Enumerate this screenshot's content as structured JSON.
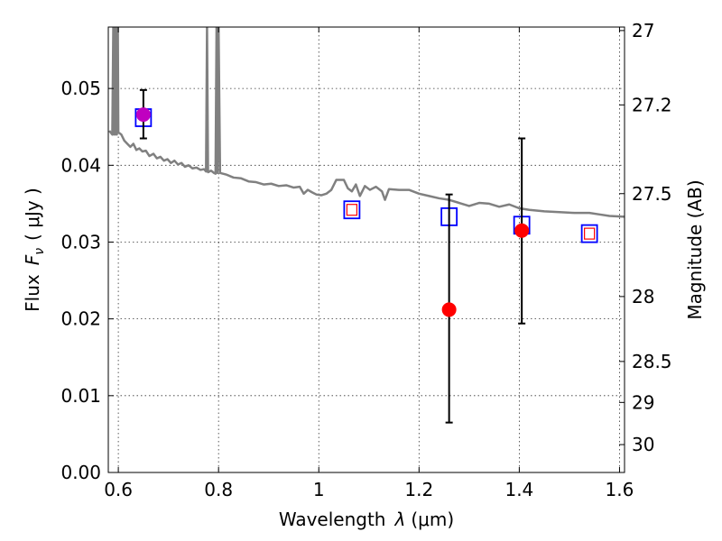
{
  "chart_data": {
    "type": "scatter",
    "x_axis": {
      "label_prefix": "Wavelength",
      "label_symbol": "λ",
      "label_unit": "(μm)",
      "range": [
        0.58,
        1.61
      ],
      "ticks": [
        0.6,
        0.8,
        1.0,
        1.2,
        1.4,
        1.6
      ],
      "tick_labels": [
        "0.6",
        "0.8",
        "1",
        "1.2",
        "1.4",
        "1.6"
      ]
    },
    "y_axis": {
      "label_prefix": "Flux",
      "label_symbol": "F",
      "label_subscript": "ν",
      "label_unit": "( μJy )",
      "range": [
        0.0,
        0.058
      ],
      "ticks": [
        0.0,
        0.01,
        0.02,
        0.03,
        0.04,
        0.05
      ],
      "tick_labels": [
        "0.00",
        "0.01",
        "0.02",
        "0.03",
        "0.04",
        "0.05"
      ]
    },
    "y2_axis": {
      "label": "Magnitude (AB)",
      "ticks": [
        27,
        27.2,
        27.5,
        28,
        28.5,
        29,
        30
      ],
      "tick_labels": [
        "27",
        "27.2",
        "27.5",
        "28",
        "28.5",
        "29",
        "30"
      ]
    },
    "grid": true,
    "series": [
      {
        "name": "model_sed",
        "kind": "line",
        "color": "#808080",
        "points": [
          [
            0.582,
            0.0445
          ],
          [
            0.588,
            0.044
          ],
          [
            0.59,
            0.058
          ],
          [
            0.591,
            0.044
          ],
          [
            0.593,
            0.058
          ],
          [
            0.594,
            0.044
          ],
          [
            0.596,
            0.058
          ],
          [
            0.597,
            0.044
          ],
          [
            0.599,
            0.058
          ],
          [
            0.6,
            0.0443
          ],
          [
            0.606,
            0.044
          ],
          [
            0.612,
            0.0432
          ],
          [
            0.618,
            0.0428
          ],
          [
            0.624,
            0.0424
          ],
          [
            0.63,
            0.0428
          ],
          [
            0.636,
            0.042
          ],
          [
            0.642,
            0.0422
          ],
          [
            0.648,
            0.0418
          ],
          [
            0.655,
            0.0419
          ],
          [
            0.662,
            0.0412
          ],
          [
            0.67,
            0.0415
          ],
          [
            0.677,
            0.0409
          ],
          [
            0.684,
            0.0411
          ],
          [
            0.691,
            0.0406
          ],
          [
            0.698,
            0.0408
          ],
          [
            0.705,
            0.0403
          ],
          [
            0.712,
            0.0406
          ],
          [
            0.719,
            0.0401
          ],
          [
            0.726,
            0.0403
          ],
          [
            0.733,
            0.0398
          ],
          [
            0.74,
            0.04
          ],
          [
            0.748,
            0.0396
          ],
          [
            0.756,
            0.0397
          ],
          [
            0.764,
            0.0394
          ],
          [
            0.771,
            0.0395
          ],
          [
            0.775,
            0.0392
          ],
          [
            0.777,
            0.058
          ],
          [
            0.779,
            0.0391
          ],
          [
            0.785,
            0.0393
          ],
          [
            0.791,
            0.039
          ],
          [
            0.794,
            0.0389
          ],
          [
            0.796,
            0.058
          ],
          [
            0.798,
            0.039
          ],
          [
            0.8,
            0.058
          ],
          [
            0.803,
            0.039
          ],
          [
            0.815,
            0.0388
          ],
          [
            0.83,
            0.0384
          ],
          [
            0.845,
            0.0383
          ],
          [
            0.86,
            0.0379
          ],
          [
            0.875,
            0.0378
          ],
          [
            0.89,
            0.0375
          ],
          [
            0.905,
            0.0376
          ],
          [
            0.92,
            0.0373
          ],
          [
            0.935,
            0.0374
          ],
          [
            0.95,
            0.0371
          ],
          [
            0.962,
            0.0372
          ],
          [
            0.97,
            0.0363
          ],
          [
            0.978,
            0.0368
          ],
          [
            0.986,
            0.0365
          ],
          [
            0.995,
            0.0362
          ],
          [
            1.005,
            0.0361
          ],
          [
            1.015,
            0.0363
          ],
          [
            1.025,
            0.0368
          ],
          [
            1.035,
            0.0381
          ],
          [
            1.05,
            0.0381
          ],
          [
            1.058,
            0.037
          ],
          [
            1.066,
            0.0366
          ],
          [
            1.074,
            0.0375
          ],
          [
            1.082,
            0.036
          ],
          [
            1.092,
            0.0373
          ],
          [
            1.102,
            0.0368
          ],
          [
            1.114,
            0.0372
          ],
          [
            1.126,
            0.0366
          ],
          [
            1.132,
            0.0355
          ],
          [
            1.14,
            0.0369
          ],
          [
            1.16,
            0.0368
          ],
          [
            1.18,
            0.0368
          ],
          [
            1.2,
            0.0363
          ],
          [
            1.22,
            0.036
          ],
          [
            1.24,
            0.0357
          ],
          [
            1.26,
            0.0355
          ],
          [
            1.28,
            0.0351
          ],
          [
            1.3,
            0.0347
          ],
          [
            1.32,
            0.0351
          ],
          [
            1.34,
            0.035
          ],
          [
            1.36,
            0.0346
          ],
          [
            1.38,
            0.0349
          ],
          [
            1.4,
            0.0344
          ],
          [
            1.42,
            0.0342
          ],
          [
            1.45,
            0.034
          ],
          [
            1.48,
            0.0339
          ],
          [
            1.51,
            0.0338
          ],
          [
            1.54,
            0.0338
          ],
          [
            1.56,
            0.0336
          ],
          [
            1.58,
            0.0334
          ],
          [
            1.61,
            0.0333
          ]
        ]
      },
      {
        "name": "model_photometry",
        "kind": "marker",
        "marker": "square",
        "edge_color": "#0000ff",
        "points": [
          [
            0.65,
            0.0462
          ],
          [
            1.066,
            0.0342
          ],
          [
            1.26,
            0.0333
          ],
          [
            1.405,
            0.0322
          ],
          [
            1.54,
            0.0311
          ]
        ]
      },
      {
        "name": "small_red_squares",
        "kind": "marker",
        "marker": "square",
        "edge_color": "#ff0000",
        "points": [
          [
            1.066,
            0.0342
          ],
          [
            1.54,
            0.0311
          ]
        ]
      },
      {
        "name": "observed",
        "kind": "marker",
        "marker": "circle",
        "points": [
          {
            "x": 0.65,
            "y": 0.0466,
            "err_lo": 0.0435,
            "err_hi": 0.0498,
            "color": "#c000c0"
          },
          {
            "x": 1.26,
            "y": 0.0212,
            "err_lo": 0.0065,
            "err_hi": 0.0362,
            "color": "#ff0000"
          },
          {
            "x": 1.405,
            "y": 0.0315,
            "err_lo": 0.0194,
            "err_hi": 0.0435,
            "color": "#ff0000"
          }
        ]
      }
    ]
  }
}
